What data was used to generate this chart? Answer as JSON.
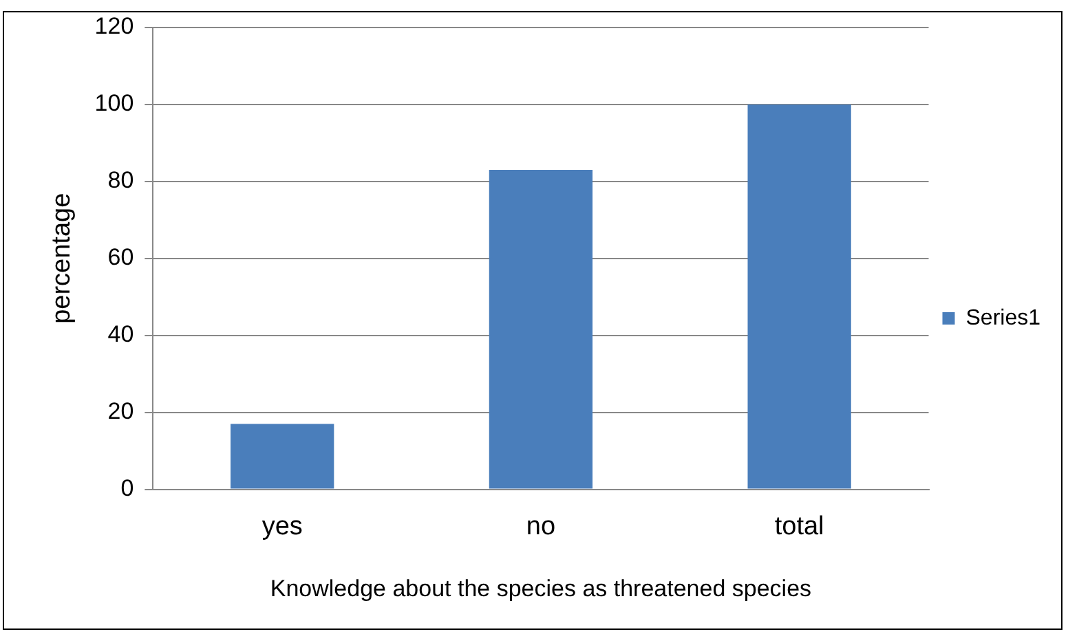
{
  "chart_data": {
    "type": "bar",
    "xlabel": "Knowledge about the species as threatened species",
    "ylabel": "percentage",
    "categories": [
      "yes",
      "no",
      "total"
    ],
    "series": [
      {
        "name": "Series1",
        "color": "#4a7ebb",
        "values": [
          17,
          83,
          100
        ]
      }
    ],
    "ylim": [
      0,
      120
    ],
    "yticks": [
      0,
      20,
      40,
      60,
      80,
      100,
      120
    ],
    "grid": "y",
    "legend": "right"
  }
}
